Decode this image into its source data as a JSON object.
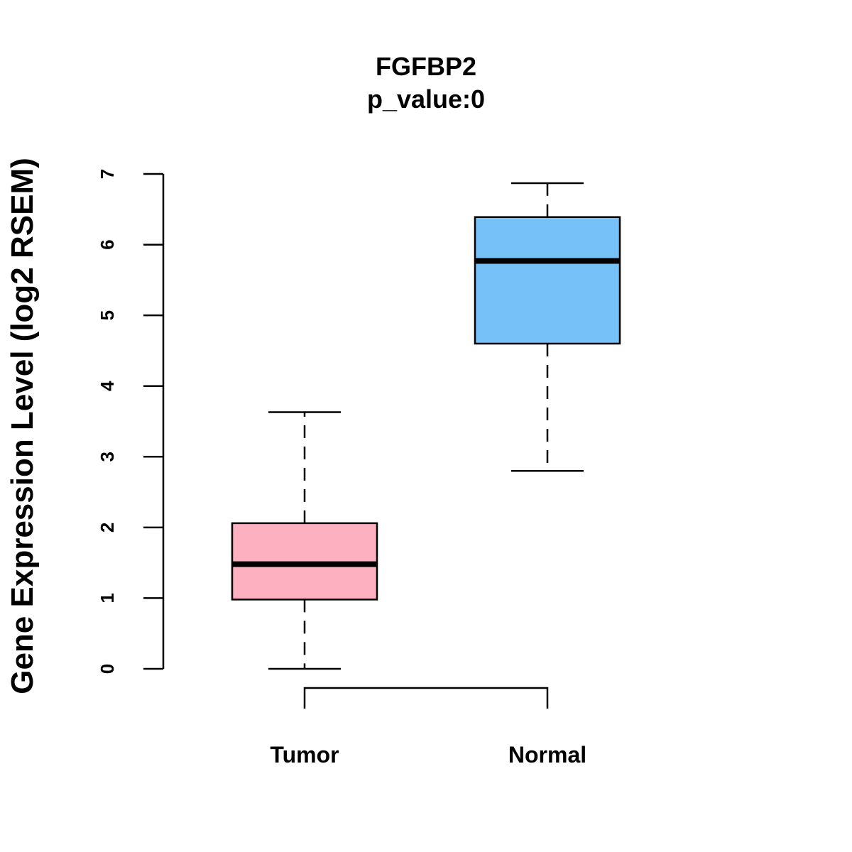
{
  "chart_data": {
    "type": "boxplot",
    "title": "FGFBP2",
    "subtitle": "p_value:0",
    "ylabel": "Gene Expression Level (log2 RSEM)",
    "xlabel": "",
    "ylim": [
      0,
      7
    ],
    "yticks": [
      "0",
      "1",
      "2",
      "3",
      "4",
      "5",
      "6",
      "7"
    ],
    "grid": false,
    "categories": [
      "Tumor",
      "Normal"
    ],
    "boxes": [
      {
        "name": "Tumor",
        "whisker_low": 0.0,
        "q1": 0.98,
        "median": 1.48,
        "q3": 2.06,
        "whisker_high": 3.63,
        "color": "#FDB0C0"
      },
      {
        "name": "Normal",
        "whisker_low": 2.8,
        "q1": 4.6,
        "median": 5.77,
        "q3": 6.39,
        "whisker_high": 6.87,
        "color": "#77C1F9"
      }
    ],
    "comparison_bracket": [
      "Tumor",
      "Normal"
    ]
  }
}
